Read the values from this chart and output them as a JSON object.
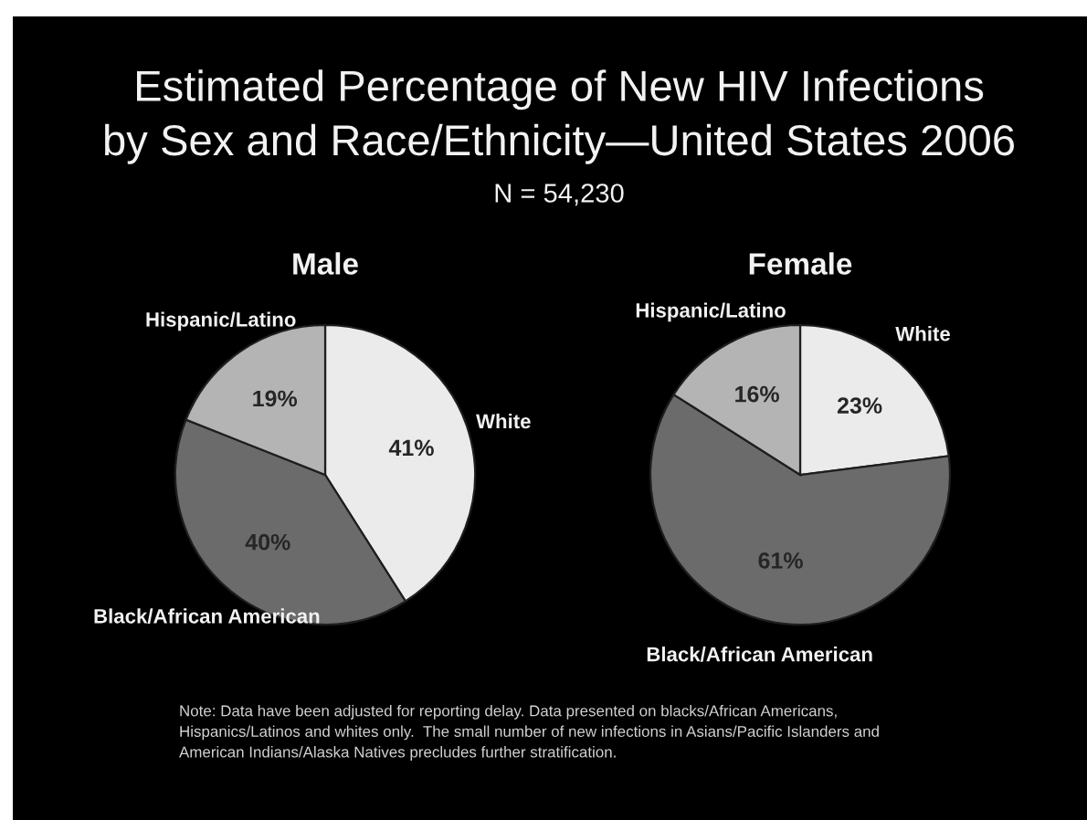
{
  "chart_data": [
    {
      "type": "other",
      "title": "Estimated Percentage of New HIV Infections\nby Sex and Race/Ethnicity—United States 2006",
      "subtitle": "N = 54,230",
      "annotations": [
        "Note: Data have been adjusted for reporting delay. Data presented on blacks/African Americans,\nHispanics/Latinos and whites only.  The small number of new infections in Asians/Pacific Islanders and\nAmerican Indians/Alaska Natives precludes further stratification."
      ]
    },
    {
      "type": "pie",
      "title": "Male",
      "categories": [
        "White",
        "Black/African American",
        "Hispanic/Latino"
      ],
      "values": [
        41,
        40,
        19
      ],
      "value_labels": [
        "41%",
        "40%",
        "19%"
      ],
      "colors": [
        "#ebebeb",
        "#6b6b6b",
        "#b4b4b4"
      ]
    },
    {
      "type": "pie",
      "title": "Female",
      "categories": [
        "White",
        "Black/African American",
        "Hispanic/Latino"
      ],
      "values": [
        23,
        61,
        16
      ],
      "value_labels": [
        "23%",
        "61%",
        "16%"
      ],
      "colors": [
        "#ebebeb",
        "#6b6b6b",
        "#b4b4b4"
      ]
    }
  ]
}
